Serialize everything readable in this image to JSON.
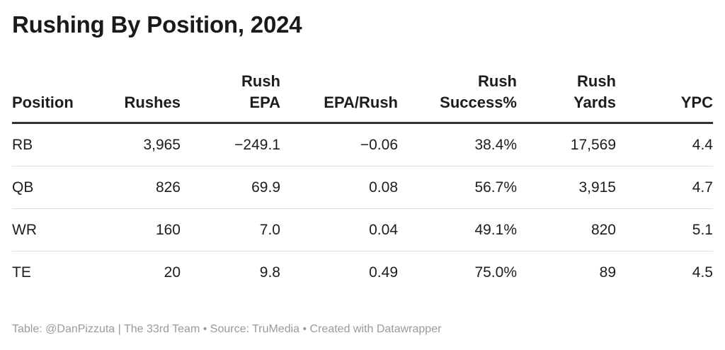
{
  "title": "Rushing By Position, 2024",
  "chart_data": {
    "type": "table",
    "title": "Rushing By Position, 2024",
    "columns": [
      {
        "key": "position",
        "label": "Position",
        "align": "left"
      },
      {
        "key": "rushes",
        "label": "Rushes",
        "align": "right"
      },
      {
        "key": "rush_epa",
        "label": "Rush\nEPA",
        "align": "right"
      },
      {
        "key": "epa_rush",
        "label": "EPA/Rush",
        "align": "right"
      },
      {
        "key": "rush_success",
        "label": "Rush\nSuccess%",
        "align": "right"
      },
      {
        "key": "rush_yards",
        "label": "Rush\nYards",
        "align": "right"
      },
      {
        "key": "ypc",
        "label": "YPC",
        "align": "right"
      }
    ],
    "rows": [
      {
        "position": "RB",
        "rushes": "3,965",
        "rush_epa": "−249.1",
        "epa_rush": "−0.06",
        "rush_success": "38.4%",
        "rush_yards": "17,569",
        "ypc": "4.4"
      },
      {
        "position": "QB",
        "rushes": "826",
        "rush_epa": "69.9",
        "epa_rush": "0.08",
        "rush_success": "56.7%",
        "rush_yards": "3,915",
        "ypc": "4.7"
      },
      {
        "position": "WR",
        "rushes": "160",
        "rush_epa": "7.0",
        "epa_rush": "0.04",
        "rush_success": "49.1%",
        "rush_yards": "820",
        "ypc": "5.1"
      },
      {
        "position": "TE",
        "rushes": "20",
        "rush_epa": "9.8",
        "epa_rush": "0.49",
        "rush_success": "75.0%",
        "rush_yards": "89",
        "ypc": "4.5"
      }
    ]
  },
  "footer": {
    "text": "Table: @DanPizzuta | The 33rd Team • Source: TruMedia • Created with Datawrapper"
  },
  "colors": {
    "text": "#1d1d1d",
    "header_rule": "#333333",
    "row_divider": "#dddddd",
    "footer_text": "#9a9a9a"
  }
}
